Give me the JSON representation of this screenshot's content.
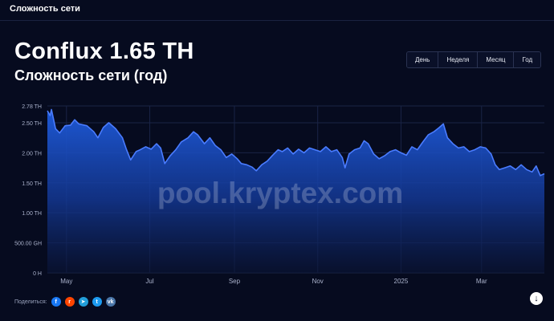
{
  "topbar": {
    "title": "Сложность сети"
  },
  "header": {
    "title": "Conflux 1.65 TH",
    "subtitle": "Сложность сети (год)"
  },
  "periods": [
    {
      "label": "День",
      "name": "period-day-button"
    },
    {
      "label": "Неделя",
      "name": "period-week-button"
    },
    {
      "label": "Месяц",
      "name": "period-month-button"
    },
    {
      "label": "Год",
      "name": "period-year-button"
    }
  ],
  "share": {
    "label": "Поделиться:",
    "icons": [
      {
        "name": "facebook-icon",
        "glyph": "f",
        "color": "#1877f2"
      },
      {
        "name": "reddit-icon",
        "glyph": "r",
        "color": "#ff4500"
      },
      {
        "name": "telegram-icon",
        "glyph": "➤",
        "color": "#229ed9"
      },
      {
        "name": "twitter-icon",
        "glyph": "t",
        "color": "#1d9bf0"
      },
      {
        "name": "vk-icon",
        "glyph": "vk",
        "color": "#4a76a8"
      }
    ]
  },
  "watermark": "pool.kryptex.com",
  "scroll_icon": "↓",
  "colors": {
    "background": "#060b1f",
    "line": "#4a7cff",
    "fill_top": "#1f5de0",
    "grid": "#1a2446"
  },
  "chart_data": {
    "type": "area",
    "x_axis": "date",
    "y_unit": "TH",
    "y_ticks": [
      {
        "value": 0,
        "label": "0 H"
      },
      {
        "value": 0.5,
        "label": "500.00 GH"
      },
      {
        "value": 1.0,
        "label": "1.00 TH"
      },
      {
        "value": 1.5,
        "label": "1.50 TH"
      },
      {
        "value": 2.0,
        "label": "2.00 TH"
      },
      {
        "value": 2.5,
        "label": "2.50 TH"
      },
      {
        "value": 2.78,
        "label": "2.78 TH"
      }
    ],
    "ylim": [
      0,
      2.78
    ],
    "xlim": [
      "2024-04-17",
      "2025-04-16"
    ],
    "x_ticks": [
      {
        "date": "2024-05-01",
        "label": "May"
      },
      {
        "date": "2024-07-01",
        "label": "Jul"
      },
      {
        "date": "2024-09-01",
        "label": "Sep"
      },
      {
        "date": "2024-11-01",
        "label": "Nov"
      },
      {
        "date": "2025-01-01",
        "label": "2025"
      },
      {
        "date": "2025-03-01",
        "label": "Mar"
      }
    ],
    "series": [
      {
        "points": [
          [
            "2024-04-17",
            2.7
          ],
          [
            "2024-04-19",
            2.62
          ],
          [
            "2024-04-20",
            2.72
          ],
          [
            "2024-04-23",
            2.4
          ],
          [
            "2024-04-26",
            2.33
          ],
          [
            "2024-04-30",
            2.45
          ],
          [
            "2024-05-04",
            2.46
          ],
          [
            "2024-05-07",
            2.55
          ],
          [
            "2024-05-10",
            2.48
          ],
          [
            "2024-05-16",
            2.45
          ],
          [
            "2024-05-21",
            2.35
          ],
          [
            "2024-05-24",
            2.25
          ],
          [
            "2024-05-28",
            2.42
          ],
          [
            "2024-06-01",
            2.5
          ],
          [
            "2024-06-06",
            2.4
          ],
          [
            "2024-06-11",
            2.25
          ],
          [
            "2024-06-14",
            2.05
          ],
          [
            "2024-06-17",
            1.88
          ],
          [
            "2024-06-21",
            2.02
          ],
          [
            "2024-06-24",
            2.05
          ],
          [
            "2024-06-28",
            2.1
          ],
          [
            "2024-07-02",
            2.06
          ],
          [
            "2024-07-06",
            2.15
          ],
          [
            "2024-07-09",
            2.08
          ],
          [
            "2024-07-12",
            1.82
          ],
          [
            "2024-07-16",
            1.95
          ],
          [
            "2024-07-20",
            2.05
          ],
          [
            "2024-07-24",
            2.18
          ],
          [
            "2024-07-29",
            2.25
          ],
          [
            "2024-08-02",
            2.35
          ],
          [
            "2024-08-05",
            2.3
          ],
          [
            "2024-08-10",
            2.15
          ],
          [
            "2024-08-14",
            2.25
          ],
          [
            "2024-08-18",
            2.12
          ],
          [
            "2024-08-22",
            2.05
          ],
          [
            "2024-08-26",
            1.92
          ],
          [
            "2024-08-30",
            1.98
          ],
          [
            "2024-09-03",
            1.9
          ],
          [
            "2024-09-06",
            1.82
          ],
          [
            "2024-09-10",
            1.8
          ],
          [
            "2024-09-14",
            1.76
          ],
          [
            "2024-09-17",
            1.7
          ],
          [
            "2024-09-21",
            1.8
          ],
          [
            "2024-09-25",
            1.86
          ],
          [
            "2024-09-29",
            1.96
          ],
          [
            "2024-10-03",
            2.05
          ],
          [
            "2024-10-06",
            2.02
          ],
          [
            "2024-10-10",
            2.08
          ],
          [
            "2024-10-14",
            1.98
          ],
          [
            "2024-10-18",
            2.06
          ],
          [
            "2024-10-22",
            2.0
          ],
          [
            "2024-10-26",
            2.08
          ],
          [
            "2024-10-30",
            2.05
          ],
          [
            "2024-11-03",
            2.02
          ],
          [
            "2024-11-07",
            2.1
          ],
          [
            "2024-11-11",
            2.02
          ],
          [
            "2024-11-15",
            2.05
          ],
          [
            "2024-11-19",
            1.92
          ],
          [
            "2024-11-21",
            1.75
          ],
          [
            "2024-11-24",
            1.98
          ],
          [
            "2024-11-28",
            2.05
          ],
          [
            "2024-12-02",
            2.08
          ],
          [
            "2024-12-05",
            2.2
          ],
          [
            "2024-12-08",
            2.15
          ],
          [
            "2024-12-12",
            1.98
          ],
          [
            "2024-12-16",
            1.9
          ],
          [
            "2024-12-20",
            1.95
          ],
          [
            "2024-12-24",
            2.02
          ],
          [
            "2024-12-28",
            2.05
          ],
          [
            "2025-01-01",
            2.0
          ],
          [
            "2025-01-05",
            1.96
          ],
          [
            "2025-01-09",
            2.1
          ],
          [
            "2025-01-13",
            2.05
          ],
          [
            "2025-01-17",
            2.18
          ],
          [
            "2025-01-21",
            2.3
          ],
          [
            "2025-01-25",
            2.35
          ],
          [
            "2025-01-29",
            2.42
          ],
          [
            "2025-02-01",
            2.48
          ],
          [
            "2025-02-04",
            2.25
          ],
          [
            "2025-02-08",
            2.15
          ],
          [
            "2025-02-12",
            2.08
          ],
          [
            "2025-02-16",
            2.1
          ],
          [
            "2025-02-20",
            2.02
          ],
          [
            "2025-02-24",
            2.05
          ],
          [
            "2025-02-28",
            2.1
          ],
          [
            "2025-03-04",
            2.08
          ],
          [
            "2025-03-08",
            1.98
          ],
          [
            "2025-03-11",
            1.8
          ],
          [
            "2025-03-14",
            1.72
          ],
          [
            "2025-03-18",
            1.75
          ],
          [
            "2025-03-22",
            1.78
          ],
          [
            "2025-03-26",
            1.72
          ],
          [
            "2025-03-30",
            1.8
          ],
          [
            "2025-04-03",
            1.72
          ],
          [
            "2025-04-07",
            1.68
          ],
          [
            "2025-04-10",
            1.78
          ],
          [
            "2025-04-13",
            1.62
          ],
          [
            "2025-04-16",
            1.65
          ]
        ]
      }
    ]
  }
}
